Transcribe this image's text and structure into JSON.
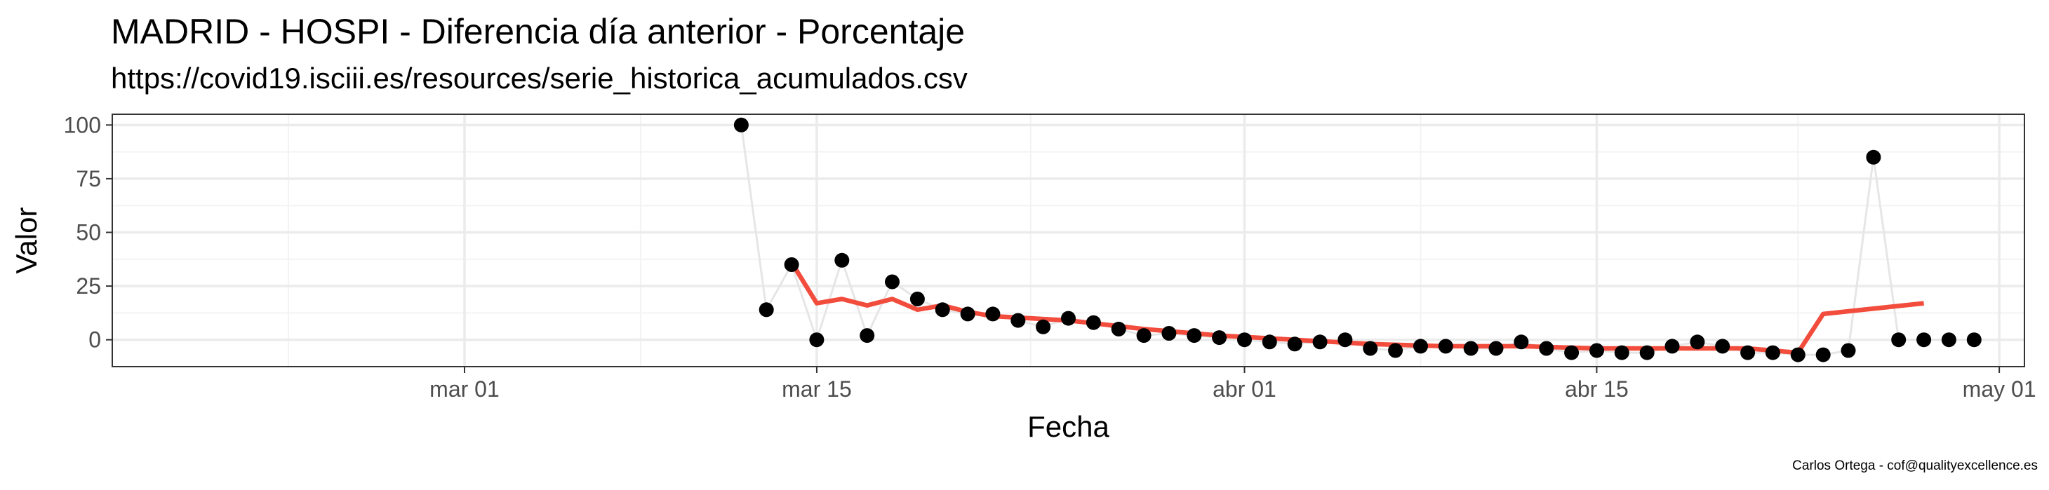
{
  "title": "MADRID - HOSPI - Diferencia día anterior - Porcentaje",
  "subtitle": "https://covid19.isciii.es/resources/serie_historica_acumulados.csv",
  "caption": "Carlos Ortega - cof@qualityexcellence.es",
  "colors": {
    "points": "#000000",
    "connector_line": "#e6e6e6",
    "smooth_line": "#f24c3d",
    "grid_major": "#ebebeb",
    "grid_minor": "#f3f3f3",
    "panel_border": "#333333"
  },
  "chart_data": {
    "type": "scatter",
    "xlabel": "Fecha",
    "ylabel": "Valor",
    "x_range": [
      "2020-02-16",
      "2020-05-02"
    ],
    "ylim": [
      -12.5,
      105
    ],
    "x_ticks": [
      {
        "date": "2020-03-01",
        "label": "mar 01"
      },
      {
        "date": "2020-03-15",
        "label": "mar 15"
      },
      {
        "date": "2020-04-01",
        "label": "abr 01"
      },
      {
        "date": "2020-04-15",
        "label": "abr 15"
      },
      {
        "date": "2020-05-01",
        "label": "may 01"
      }
    ],
    "y_ticks": [
      0,
      25,
      50,
      75,
      100
    ],
    "grid": true,
    "legend": "none",
    "series": [
      {
        "kind": "points",
        "x": [
          "2020-03-12",
          "2020-03-13",
          "2020-03-14",
          "2020-03-15",
          "2020-03-16",
          "2020-03-17",
          "2020-03-18",
          "2020-03-19",
          "2020-03-20",
          "2020-03-21",
          "2020-03-22",
          "2020-03-23",
          "2020-03-24",
          "2020-03-25",
          "2020-03-26",
          "2020-03-27",
          "2020-03-28",
          "2020-03-29",
          "2020-03-30",
          "2020-03-31",
          "2020-04-01",
          "2020-04-02",
          "2020-04-03",
          "2020-04-04",
          "2020-04-05",
          "2020-04-06",
          "2020-04-07",
          "2020-04-08",
          "2020-04-09",
          "2020-04-10",
          "2020-04-11",
          "2020-04-12",
          "2020-04-13",
          "2020-04-14",
          "2020-04-15",
          "2020-04-16",
          "2020-04-17",
          "2020-04-18",
          "2020-04-19",
          "2020-04-20",
          "2020-04-21",
          "2020-04-22",
          "2020-04-23",
          "2020-04-24",
          "2020-04-25",
          "2020-04-26",
          "2020-04-27",
          "2020-04-28",
          "2020-04-29",
          "2020-04-30"
        ],
        "y": [
          100,
          14,
          35,
          0,
          37,
          2,
          27,
          19,
          14,
          12,
          12,
          9,
          6,
          10,
          8,
          5,
          2,
          3,
          2,
          1,
          0,
          -1,
          -2,
          -1,
          0,
          -4,
          -5,
          -3,
          -3,
          -4,
          -4,
          -1,
          -4,
          -6,
          -5,
          -6,
          -6,
          -3,
          -1,
          -3,
          -6,
          -6,
          -7,
          -7,
          -5,
          85,
          0,
          0,
          0,
          0
        ]
      },
      {
        "kind": "smooth_line",
        "x": [
          "2020-03-14",
          "2020-03-15",
          "2020-03-16",
          "2020-03-17",
          "2020-03-18",
          "2020-03-19",
          "2020-03-20",
          "2020-03-21",
          "2020-03-22",
          "2020-03-25",
          "2020-03-28",
          "2020-03-31",
          "2020-04-03",
          "2020-04-06",
          "2020-04-09",
          "2020-04-12",
          "2020-04-15",
          "2020-04-18",
          "2020-04-21",
          "2020-04-23",
          "2020-04-24",
          "2020-04-28"
        ],
        "y": [
          36,
          17,
          19,
          16,
          19,
          14,
          16,
          13,
          11,
          9,
          5,
          2,
          0,
          -2,
          -3,
          -3,
          -4,
          -4,
          -4,
          -6,
          12,
          17
        ]
      }
    ]
  }
}
